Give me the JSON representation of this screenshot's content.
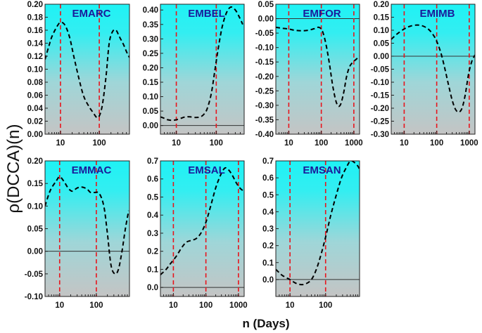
{
  "chart_data": {
    "type": "line",
    "y_axis_label": "ρ(DCCA)(n)",
    "x_axis_label": "n (Days)",
    "x_scale": "log",
    "reference_lines_x": [
      10,
      100,
      1000
    ],
    "colors": {
      "bg_top": "#1ff2f5",
      "bg_bottom": "#c3c3c3",
      "curve": "#000000",
      "vline": "#e8141c",
      "zeroline": "#333333"
    },
    "panels": [
      {
        "title": "EMARC",
        "xlim": [
          4,
          600
        ],
        "ylim": [
          0,
          0.2
        ],
        "yticks": [
          0,
          0.02,
          0.04,
          0.06,
          0.08,
          0.1,
          0.12,
          0.14,
          0.16,
          0.18,
          0.2
        ],
        "ytick_labels": [
          "0.00",
          "0.02",
          "0.04",
          "0.06",
          "0.08",
          "0.10",
          "0.12",
          "0.14",
          "0.16",
          "0.18",
          "0.20"
        ],
        "xticks": [
          10,
          100
        ],
        "xtick_labels": [
          "10",
          "100"
        ],
        "vlines": [
          10,
          100
        ],
        "x": [
          4,
          5,
          6,
          8,
          10,
          13,
          17,
          22,
          30,
          40,
          55,
          70,
          85,
          100,
          120,
          150,
          180,
          220,
          270,
          330,
          420,
          520,
          600
        ],
        "y": [
          0.115,
          0.135,
          0.15,
          0.165,
          0.172,
          0.168,
          0.15,
          0.12,
          0.085,
          0.058,
          0.042,
          0.033,
          0.026,
          0.028,
          0.045,
          0.09,
          0.14,
          0.158,
          0.16,
          0.15,
          0.138,
          0.125,
          0.118
        ]
      },
      {
        "title": "EMBEL",
        "xlim": [
          4,
          500
        ],
        "ylim": [
          -0.03,
          0.42
        ],
        "yticks": [
          0,
          0.05,
          0.1,
          0.15,
          0.2,
          0.25,
          0.3,
          0.35,
          0.4
        ],
        "ytick_labels": [
          "0.00",
          "0.05",
          "0.10",
          "0.15",
          "0.20",
          "0.25",
          "0.30",
          "0.35",
          "0.40"
        ],
        "xticks": [
          10,
          100
        ],
        "xtick_labels": [
          "10",
          "100"
        ],
        "vlines": [
          10,
          100
        ],
        "x": [
          4,
          5,
          6,
          8,
          10,
          13,
          17,
          22,
          30,
          40,
          50,
          60,
          75,
          90,
          110,
          140,
          180,
          230,
          300,
          380,
          460
        ],
        "y": [
          0.03,
          0.025,
          0.02,
          0.018,
          0.02,
          0.025,
          0.03,
          0.03,
          0.028,
          0.03,
          0.04,
          0.06,
          0.11,
          0.18,
          0.26,
          0.34,
          0.39,
          0.41,
          0.4,
          0.375,
          0.35
        ]
      },
      {
        "title": "EMFOR",
        "xlim": [
          4,
          1500
        ],
        "ylim": [
          -0.4,
          0.05
        ],
        "yticks": [
          -0.4,
          -0.35,
          -0.3,
          -0.25,
          -0.2,
          -0.15,
          -0.1,
          -0.05,
          0.0,
          0.05
        ],
        "ytick_labels": [
          "-0.40",
          "-0.35",
          "-0.30",
          "-0.25",
          "-0.20",
          "-0.15",
          "-0.10",
          "-0.05",
          "0.00",
          "0.05"
        ],
        "xticks": [
          10,
          100,
          1000
        ],
        "xtick_labels": [
          "10",
          "100",
          "1000"
        ],
        "vlines": [
          10,
          100,
          1000
        ],
        "x": [
          4,
          6,
          10,
          15,
          25,
          40,
          60,
          85,
          110,
          140,
          180,
          230,
          300,
          380,
          480,
          600,
          750,
          950,
          1200,
          1500
        ],
        "y": [
          -0.03,
          -0.033,
          -0.036,
          -0.04,
          -0.042,
          -0.04,
          -0.035,
          -0.03,
          -0.045,
          -0.09,
          -0.16,
          -0.24,
          -0.295,
          -0.3,
          -0.26,
          -0.2,
          -0.165,
          -0.15,
          -0.14,
          -0.13
        ]
      },
      {
        "title": "EMIMB",
        "xlim": [
          4,
          1500
        ],
        "ylim": [
          -0.3,
          0.2
        ],
        "yticks": [
          -0.3,
          -0.25,
          -0.2,
          -0.15,
          -0.1,
          -0.05,
          0.0,
          0.05,
          0.1,
          0.15,
          0.2
        ],
        "ytick_labels": [
          "-0.30",
          "-0.25",
          "-0.20",
          "-0.15",
          "-0.10",
          "-0.05",
          "0.00",
          "0.05",
          "0.10",
          "0.15",
          "0.20"
        ],
        "xticks": [
          10,
          100,
          1000
        ],
        "xtick_labels": [
          "10",
          "100",
          "1000"
        ],
        "vlines": [
          10,
          100,
          1000
        ],
        "x": [
          4,
          6,
          10,
          15,
          25,
          40,
          60,
          85,
          110,
          140,
          180,
          230,
          300,
          380,
          480,
          600,
          750,
          950,
          1200,
          1500
        ],
        "y": [
          0.065,
          0.085,
          0.105,
          0.115,
          0.12,
          0.115,
          0.1,
          0.075,
          0.045,
          0.005,
          -0.05,
          -0.11,
          -0.17,
          -0.205,
          -0.215,
          -0.2,
          -0.15,
          -0.07,
          -0.02,
          0.005
        ]
      },
      {
        "title": "EMMAC",
        "xlim": [
          4,
          800
        ],
        "ylim": [
          -0.1,
          0.2
        ],
        "yticks": [
          -0.1,
          -0.05,
          0.0,
          0.05,
          0.1,
          0.15,
          0.2
        ],
        "ytick_labels": [
          "-0.10",
          "-0.05",
          "0.00",
          "0.05",
          "0.10",
          "0.15",
          "0.20"
        ],
        "xticks": [
          10,
          100
        ],
        "xtick_labels": [
          "10",
          "100"
        ],
        "vlines": [
          10,
          100
        ],
        "x": [
          4,
          5,
          6,
          8,
          10,
          13,
          17,
          22,
          30,
          40,
          55,
          70,
          90,
          120,
          160,
          200,
          250,
          320,
          400,
          500,
          620,
          760
        ],
        "y": [
          0.1,
          0.125,
          0.14,
          0.155,
          0.165,
          0.155,
          0.14,
          0.133,
          0.14,
          0.142,
          0.138,
          0.13,
          0.13,
          0.128,
          0.1,
          0.04,
          -0.03,
          -0.05,
          -0.04,
          0.0,
          0.05,
          0.09
        ]
      },
      {
        "title": "EMSAL",
        "xlim": [
          4,
          1500
        ],
        "ylim": [
          -0.05,
          0.7
        ],
        "yticks": [
          0.0,
          0.1,
          0.2,
          0.3,
          0.4,
          0.5,
          0.6,
          0.7
        ],
        "ytick_labels": [
          "0.0",
          "0.1",
          "0.2",
          "0.3",
          "0.4",
          "0.5",
          "0.6",
          "0.7"
        ],
        "xticks": [
          10,
          100,
          1000
        ],
        "xtick_labels": [
          "10",
          "100",
          "1000"
        ],
        "vlines": [
          10,
          100,
          1000
        ],
        "x": [
          4,
          6,
          8,
          12,
          18,
          25,
          35,
          50,
          70,
          100,
          140,
          200,
          280,
          380,
          500,
          650,
          850,
          1100,
          1500
        ],
        "y": [
          0.07,
          0.1,
          0.13,
          0.17,
          0.22,
          0.25,
          0.26,
          0.27,
          0.3,
          0.36,
          0.45,
          0.55,
          0.62,
          0.66,
          0.65,
          0.62,
          0.58,
          0.55,
          0.53
        ]
      },
      {
        "title": "EMSAN",
        "xlim": [
          4,
          900
        ],
        "ylim": [
          -0.1,
          0.7
        ],
        "yticks": [
          0.0,
          0.1,
          0.2,
          0.3,
          0.4,
          0.5,
          0.6,
          0.7
        ],
        "ytick_labels": [
          "0.0",
          "0.1",
          "0.2",
          "0.3",
          "0.4",
          "0.5",
          "0.6",
          "0.7"
        ],
        "xticks": [
          10,
          100
        ],
        "xtick_labels": [
          "10",
          "100"
        ],
        "vlines": [
          10,
          100
        ],
        "x": [
          4,
          5,
          6,
          8,
          10,
          14,
          20,
          28,
          40,
          55,
          75,
          100,
          140,
          200,
          280,
          380,
          500,
          650,
          800,
          900
        ],
        "y": [
          0.06,
          0.04,
          0.025,
          0.01,
          0.0,
          -0.02,
          -0.03,
          -0.025,
          0.0,
          0.06,
          0.15,
          0.25,
          0.38,
          0.5,
          0.6,
          0.66,
          0.7,
          0.69,
          0.67,
          0.65
        ]
      }
    ]
  }
}
